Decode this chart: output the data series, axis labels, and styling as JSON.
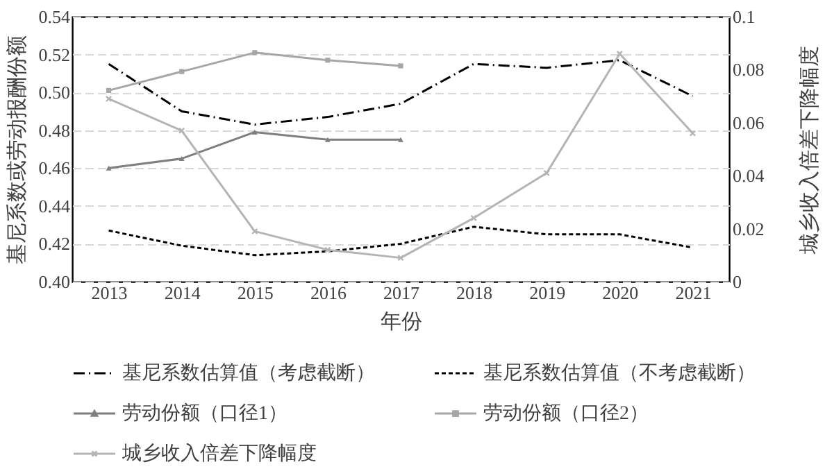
{
  "chart_data": {
    "type": "line",
    "xlabel": "年份",
    "ylabel": "基尼系数或劳动报酬份额",
    "y2label": "城乡收入倍差下降幅度",
    "categories": [
      "2013",
      "2014",
      "2015",
      "2016",
      "2017",
      "2018",
      "2019",
      "2020",
      "2021"
    ],
    "series": [
      {
        "name": "基尼系数估算值（考虑截断）",
        "color": "#000000",
        "line_style": "dashdot",
        "marker": "none",
        "values": [
          0.515,
          0.49,
          0.483,
          0.487,
          0.494,
          0.515,
          0.513,
          0.517,
          0.498
        ]
      },
      {
        "name": "基尼系数估算值（不考虑截断）",
        "color": "#000000",
        "line_style": "dashed",
        "marker": "none",
        "values": [
          0.427,
          0.419,
          0.414,
          0.416,
          0.42,
          0.429,
          0.425,
          0.425,
          0.418
        ]
      },
      {
        "name": "劳动份额（口径1）",
        "color": "#7f7f7f",
        "line_style": "solid",
        "marker": "triangle",
        "values": [
          0.46,
          0.465,
          0.479,
          0.475,
          0.475,
          null,
          null,
          null,
          null
        ]
      },
      {
        "name": "劳动份额（口径2）",
        "color": "#a6a6a6",
        "line_style": "solid",
        "marker": "square",
        "values": [
          0.501,
          0.511,
          0.521,
          0.517,
          0.514,
          null,
          null,
          null,
          null
        ]
      },
      {
        "name": "城乡收入倍差下降幅度",
        "color": "#b4b4b4",
        "line_style": "solid",
        "marker": "cross",
        "axis": "y2",
        "values": [
          0.069,
          0.057,
          0.019,
          0.012,
          0.009,
          0.024,
          0.041,
          0.086,
          0.056
        ]
      }
    ],
    "ylim": [
      0.4,
      0.54
    ],
    "yticks": [
      {
        "value": 0.4,
        "label": "0.40"
      },
      {
        "value": 0.42,
        "label": "0.42"
      },
      {
        "value": 0.44,
        "label": "0.44"
      },
      {
        "value": 0.46,
        "label": "0.46"
      },
      {
        "value": 0.48,
        "label": "0.48"
      },
      {
        "value": 0.5,
        "label": "0.50"
      },
      {
        "value": 0.52,
        "label": "0.52"
      },
      {
        "value": 0.54,
        "label": "0.54"
      }
    ],
    "y2lim": [
      0,
      0.1
    ],
    "y2ticks": [
      0,
      0.02,
      0.04,
      0.06,
      0.08,
      0.1
    ],
    "grid": "y",
    "legend": "bottom"
  }
}
